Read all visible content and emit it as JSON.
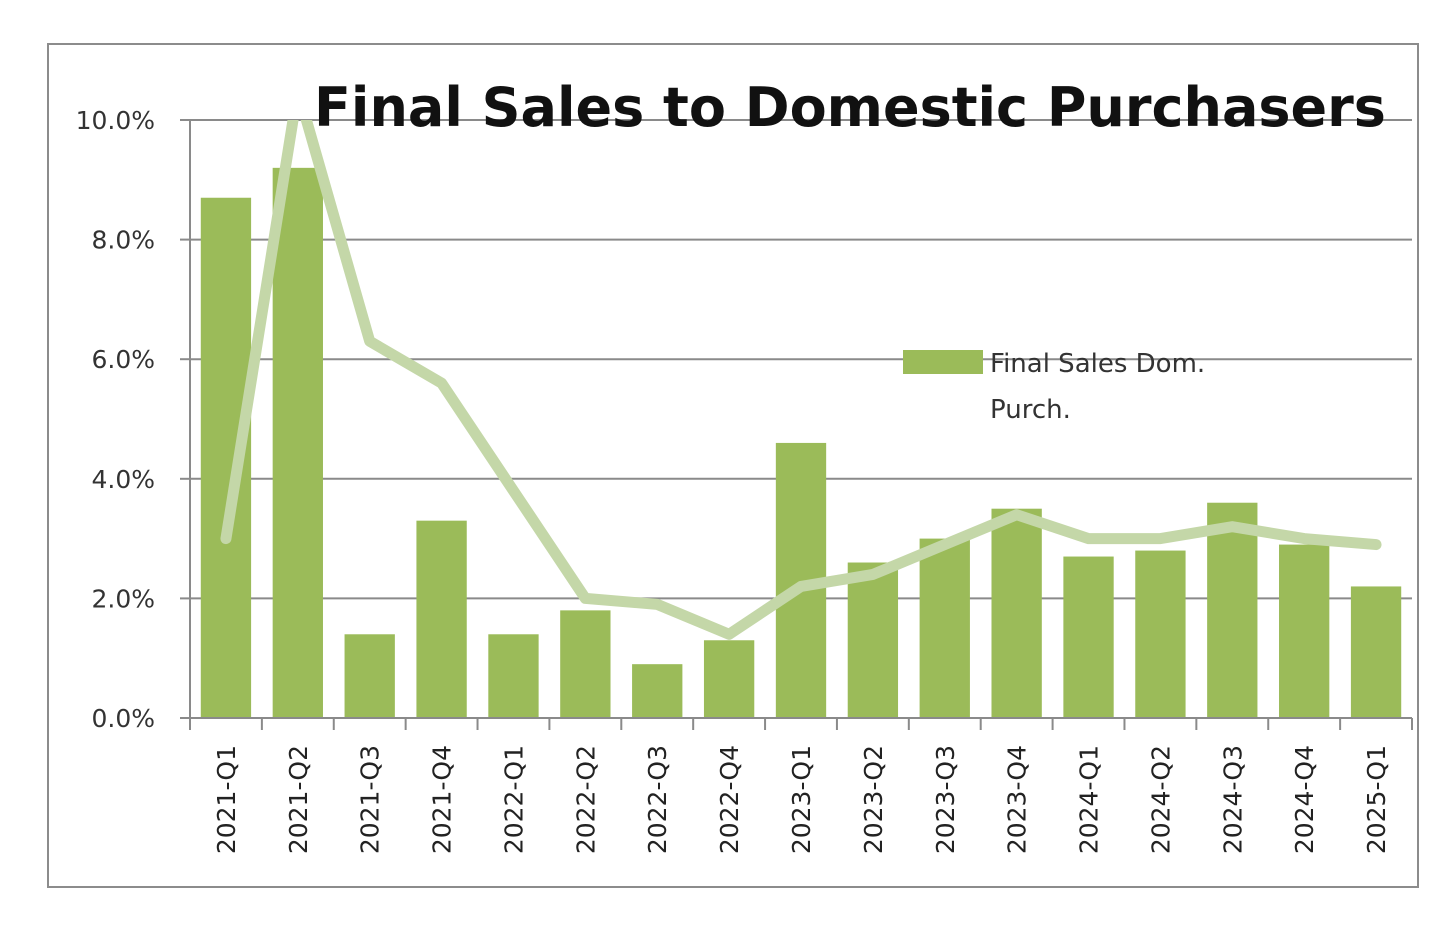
{
  "chart_data": {
    "type": "bar",
    "title": "Final Sales to Domestic Purchasers",
    "xlabel": "",
    "ylabel": "",
    "ylim": [
      0,
      10
    ],
    "y_ticks": [
      "0.0%",
      "2.0%",
      "4.0%",
      "6.0%",
      "8.0%",
      "10.0%"
    ],
    "y_tick_values": [
      0,
      2,
      4,
      6,
      8,
      10
    ],
    "grid": true,
    "legend_position": "right",
    "categories": [
      "2021-Q1",
      "2021-Q2",
      "2021-Q3",
      "2021-Q4",
      "2022-Q1",
      "2022-Q2",
      "2022-Q3",
      "2022-Q4",
      "2023-Q1",
      "2023-Q2",
      "2023-Q3",
      "2023-Q4",
      "2024-Q1",
      "2024-Q2",
      "2024-Q3",
      "2024-Q4",
      "2025-Q1"
    ],
    "series": [
      {
        "name": "Final Sales Dom. Purch.",
        "legend_lines": [
          "Final Sales Dom.",
          "Purch."
        ],
        "type": "bar",
        "color": "#9bbb59",
        "values": [
          8.7,
          9.2,
          1.4,
          3.3,
          1.4,
          1.8,
          0.9,
          1.3,
          4.6,
          2.6,
          3.0,
          3.5,
          2.7,
          2.8,
          3.6,
          2.9,
          2.2
        ]
      },
      {
        "type": "line",
        "color": "#c4d7a8",
        "values": [
          3.0,
          10.5,
          6.3,
          5.6,
          3.8,
          2.0,
          1.9,
          1.4,
          2.2,
          2.4,
          2.9,
          3.4,
          3.0,
          3.0,
          3.2,
          3.0,
          2.9
        ]
      }
    ]
  }
}
